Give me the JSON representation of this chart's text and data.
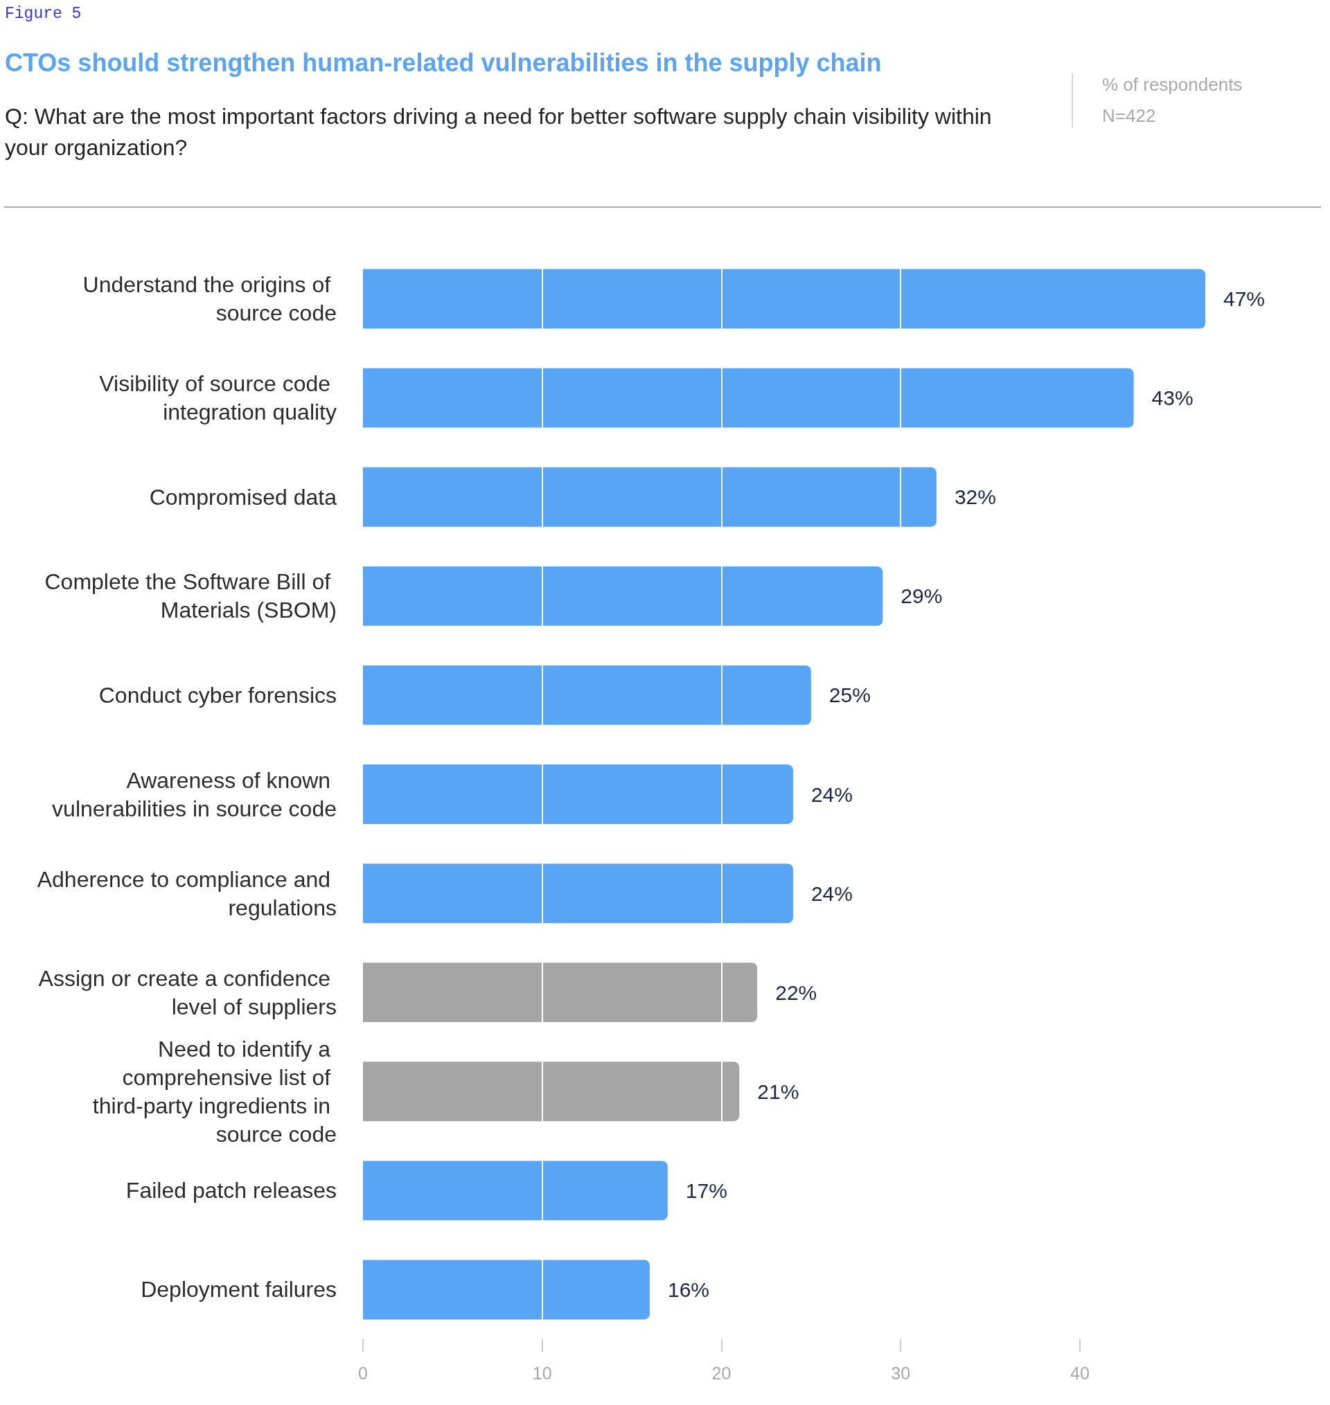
{
  "chart_data": {
    "type": "bar",
    "orientation": "horizontal",
    "title": "CTOs should strengthen human-related vulnerabilities in the supply chain",
    "subtitle": "Q: What are the most important factors driving a need for better software supply chain visibility within your organization?",
    "annotations": [
      "Figure 5",
      "% of respondents",
      "N=422"
    ],
    "categories": [
      "Understand the origins of source code",
      "Visibility of source code integration quality",
      "Compromised data",
      "Complete the Software Bill of Materials (SBOM)",
      "Conduct cyber forensics",
      "Awareness of known vulnerabilities in source code",
      "Adherence to compliance and regulations",
      "Assign or create a confidence level of suppliers",
      "Need to identify a comprehensive list of third-party ingredients in source code",
      "Failed patch releases",
      "Deployment failures"
    ],
    "values": [
      47,
      43,
      32,
      29,
      25,
      24,
      24,
      22,
      21,
      17,
      16
    ],
    "colors": [
      "#58a5f5",
      "#58a5f5",
      "#58a5f5",
      "#58a5f5",
      "#58a5f5",
      "#58a5f5",
      "#58a5f5",
      "#a5a5a5",
      "#a5a5a5",
      "#58a5f5",
      "#58a5f5"
    ],
    "value_labels": [
      "47%",
      "43%",
      "32%",
      "29%",
      "25%",
      "24%",
      "24%",
      "22%",
      "21%",
      "17%",
      "16%"
    ],
    "xlim": [
      0,
      47
    ],
    "xticks": [
      0,
      10,
      20,
      30,
      40
    ],
    "grid": "x"
  }
}
